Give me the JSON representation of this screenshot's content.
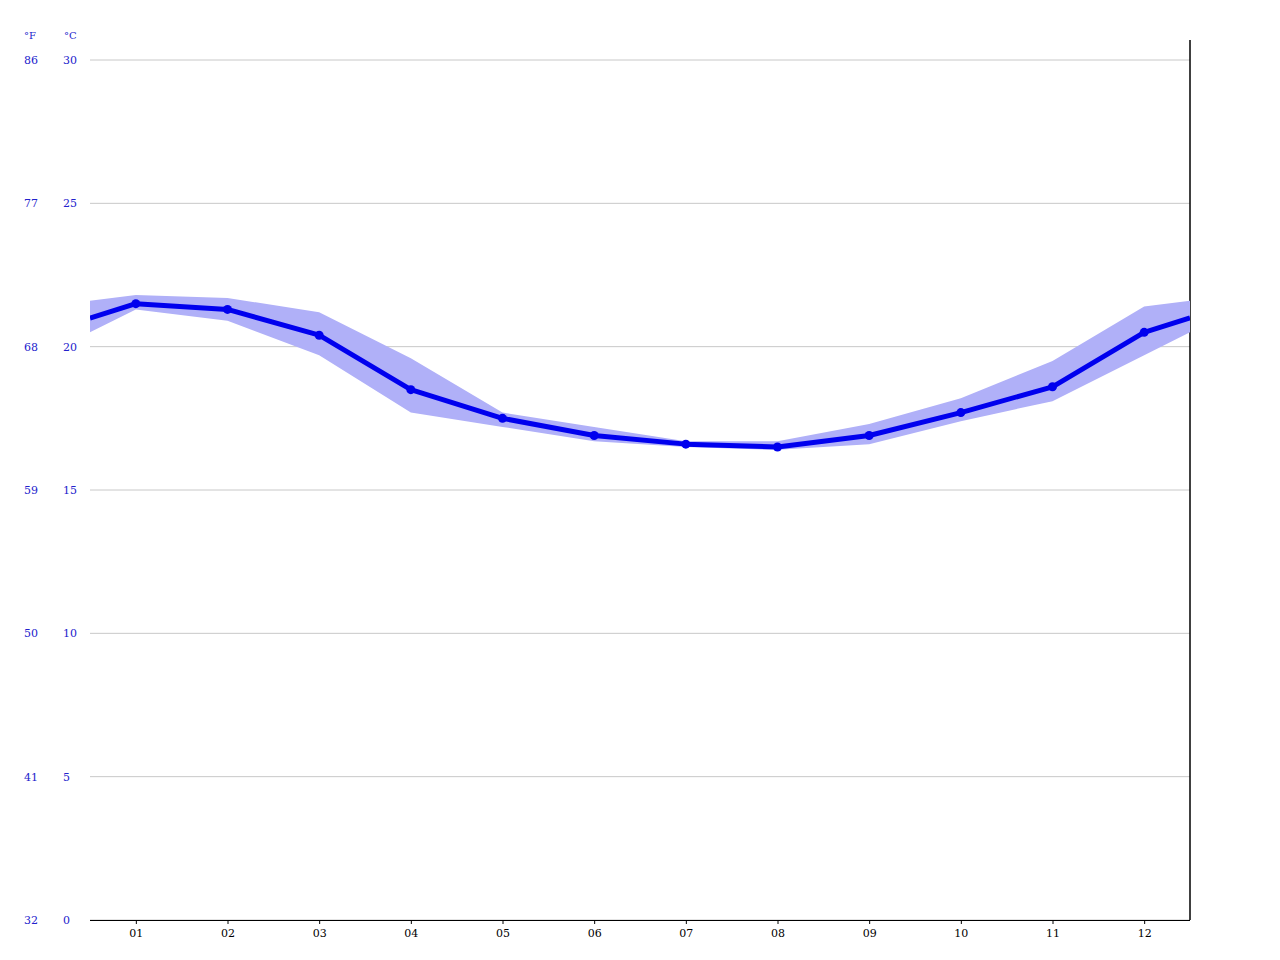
{
  "chart_data": {
    "type": "line",
    "ylabel": "°C",
    "y2label": "°F",
    "x": [
      0.5,
      1,
      2,
      3,
      4,
      5,
      6,
      7,
      8,
      9,
      10,
      11,
      12,
      12.5
    ],
    "values": [
      21.0,
      21.5,
      21.3,
      20.4,
      18.5,
      17.5,
      16.9,
      16.6,
      16.5,
      16.9,
      17.7,
      18.6,
      20.5,
      21.0
    ],
    "upper": [
      21.6,
      21.8,
      21.7,
      21.2,
      19.6,
      17.7,
      17.2,
      16.7,
      16.7,
      17.3,
      18.2,
      19.5,
      21.4,
      21.6
    ],
    "lower": [
      20.5,
      21.3,
      20.9,
      19.7,
      17.7,
      17.2,
      16.7,
      16.5,
      16.4,
      16.6,
      17.4,
      18.1,
      19.7,
      20.5
    ],
    "color": "#0000ee",
    "marker": "circle",
    "grid": true,
    "xlim": [
      0.5,
      12.5
    ],
    "xticks": [
      {
        "value": 1,
        "label": "01"
      },
      {
        "value": 2,
        "label": "02"
      },
      {
        "value": 3,
        "label": "03"
      },
      {
        "value": 4,
        "label": "04"
      },
      {
        "value": 5,
        "label": "05"
      },
      {
        "value": 6,
        "label": "06"
      },
      {
        "value": 7,
        "label": "07"
      },
      {
        "value": 8,
        "label": "08"
      },
      {
        "value": 9,
        "label": "09"
      },
      {
        "value": 10,
        "label": "10"
      },
      {
        "value": 11,
        "label": "11"
      },
      {
        "value": 12,
        "label": "12"
      }
    ],
    "ylim": [
      0,
      30
    ],
    "yticks": [
      0,
      5,
      10,
      15,
      20,
      25,
      30
    ],
    "y2lim": [
      32,
      86
    ],
    "y2ticks": [
      32,
      41,
      50,
      59,
      68,
      77,
      86
    ]
  }
}
